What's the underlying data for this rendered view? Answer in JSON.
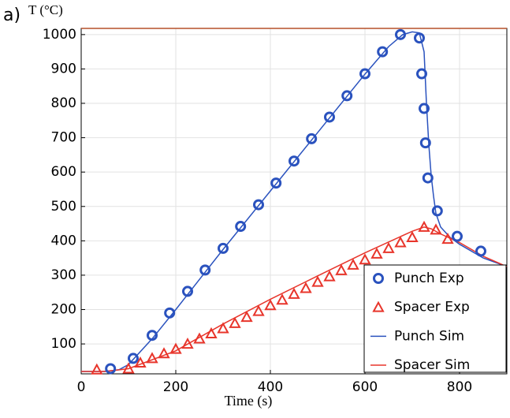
{
  "chart_data": {
    "type": "line",
    "panel_label": "a)",
    "y_label": "T (°C)",
    "x_label": "Time (s)",
    "xlim": [
      0,
      900
    ],
    "ylim": [
      13,
      1018
    ],
    "xticks": [
      0,
      200,
      400,
      600,
      800
    ],
    "yticks": [
      100,
      200,
      300,
      400,
      500,
      600,
      700,
      800,
      900,
      1000
    ],
    "grid": true,
    "legend": "lower right",
    "series": [
      {
        "name": "Punch Exp",
        "color": "#2a52be",
        "marker": "circle",
        "x": [
          62,
          110,
          150,
          187,
          225,
          262,
          300,
          337,
          375,
          412,
          450,
          487,
          525,
          562,
          600,
          637,
          675,
          715,
          720,
          725,
          728,
          733,
          753,
          795,
          845
        ],
        "values": [
          28,
          58,
          125,
          190,
          253,
          315,
          378,
          442,
          505,
          568,
          632,
          697,
          760,
          822,
          886,
          950,
          1000,
          990,
          886,
          785,
          685,
          583,
          487,
          413,
          370
        ]
      },
      {
        "name": "Spacer Exp",
        "color": "#e8352b",
        "marker": "triangle",
        "x": [
          33,
          100,
          125,
          150,
          175,
          200,
          225,
          250,
          275,
          300,
          325,
          350,
          375,
          400,
          425,
          450,
          475,
          500,
          525,
          550,
          575,
          600,
          625,
          650,
          675,
          700,
          725,
          750,
          775
        ],
        "values": [
          25,
          28,
          45,
          58,
          72,
          85,
          100,
          115,
          130,
          145,
          160,
          178,
          195,
          212,
          228,
          245,
          262,
          280,
          296,
          314,
          330,
          345,
          362,
          378,
          395,
          410,
          440,
          432,
          405
        ]
      },
      {
        "name": "Punch Sim",
        "color": "#2a52be",
        "marker": "none",
        "x": [
          0,
          50,
          80,
          100,
          150,
          200,
          300,
          400,
          500,
          600,
          650,
          680,
          700,
          715,
          725,
          730,
          735,
          740,
          745,
          750,
          760,
          780,
          800,
          850,
          900
        ],
        "values": [
          20,
          20,
          25,
          40,
          115,
          200,
          375,
          545,
          715,
          885,
          965,
          1000,
          1008,
          1005,
          950,
          800,
          680,
          590,
          530,
          480,
          440,
          410,
          390,
          350,
          325
        ]
      },
      {
        "name": "Spacer Sim",
        "color": "#e8352b",
        "marker": "none",
        "x": [
          0,
          50,
          100,
          200,
          300,
          400,
          500,
          600,
          700,
          725,
          740,
          760,
          800,
          850,
          900
        ],
        "values": [
          20,
          20,
          28,
          80,
          158,
          230,
          298,
          365,
          428,
          440,
          435,
          420,
          395,
          355,
          325
        ]
      }
    ]
  }
}
